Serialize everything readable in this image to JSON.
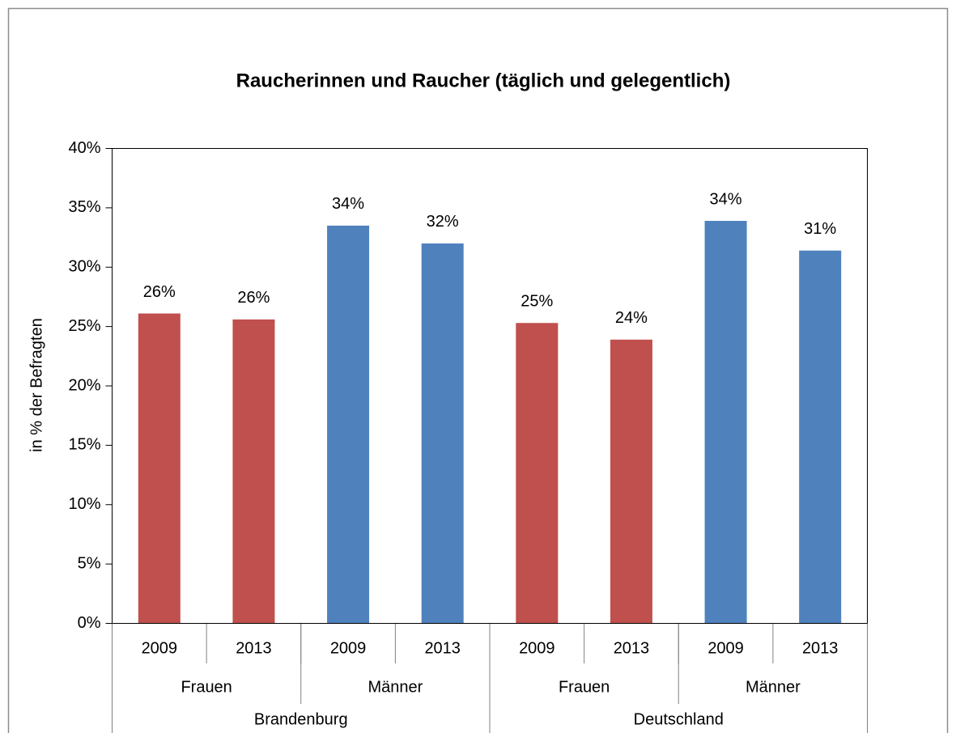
{
  "chart_data": {
    "type": "bar",
    "title": "Raucherinnen und Raucher (täglich und gelegentlich)",
    "y_label": "in % der Befragten",
    "categories": [
      "2009",
      "2013",
      "2009",
      "2013",
      "2009",
      "2013",
      "2009",
      "2013"
    ],
    "category_levels": [
      [
        {
          "label": "Frauen",
          "count": 2
        },
        {
          "label": "Männer",
          "count": 2
        },
        {
          "label": "Frauen",
          "count": 2
        },
        {
          "label": "Männer",
          "count": 2
        }
      ],
      [
        {
          "label": "Brandenburg",
          "count": 4
        },
        {
          "label": "Deutschland",
          "count": 4
        }
      ]
    ],
    "values": [
      26.1,
      25.6,
      33.5,
      32.0,
      25.3,
      23.9,
      33.9,
      31.4
    ],
    "value_labels": [
      "26%",
      "26%",
      "34%",
      "32%",
      "25%",
      "24%",
      "34%",
      "31%"
    ],
    "colors": [
      "#c0504d",
      "#c0504d",
      "#4f81bd",
      "#4f81bd",
      "#c0504d",
      "#c0504d",
      "#4f81bd",
      "#4f81bd"
    ],
    "ylim": [
      0,
      40
    ],
    "yticks": [
      {
        "value": 0,
        "label": "0%"
      },
      {
        "value": 5,
        "label": "5%"
      },
      {
        "value": 10,
        "label": "10%"
      },
      {
        "value": 15,
        "label": "15%"
      },
      {
        "value": 20,
        "label": "20%"
      },
      {
        "value": 25,
        "label": "25%"
      },
      {
        "value": 30,
        "label": "30%"
      },
      {
        "value": 35,
        "label": "35%"
      },
      {
        "value": 40,
        "label": "40%"
      }
    ]
  }
}
